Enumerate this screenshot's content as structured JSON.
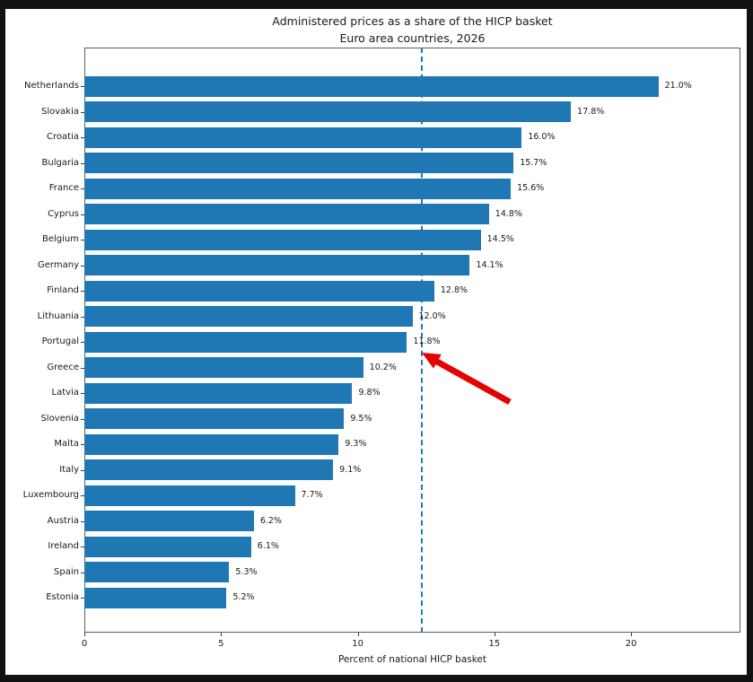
{
  "figure": {
    "background": "#ffffff",
    "outer_border_color": "#111111"
  },
  "chart_data": {
    "type": "bar",
    "orientation": "horizontal",
    "title": "Administered prices as a share of the HICP basket",
    "subtitle": "Euro area countries, 2026",
    "xlabel": "Percent of national HICP basket",
    "ylabel": "",
    "categories": [
      "Netherlands",
      "Slovakia",
      "Croatia",
      "Bulgaria",
      "France",
      "Cyprus",
      "Belgium",
      "Germany",
      "Finland",
      "Lithuania",
      "Portugal",
      "Greece",
      "Latvia",
      "Slovenia",
      "Malta",
      "Italy",
      "Luxembourg",
      "Austria",
      "Ireland",
      "Spain",
      "Estonia"
    ],
    "values": [
      21.0,
      17.8,
      16.0,
      15.7,
      15.6,
      14.8,
      14.5,
      14.1,
      12.8,
      12.0,
      11.8,
      10.2,
      9.8,
      9.5,
      9.3,
      9.1,
      7.7,
      6.2,
      6.1,
      5.3,
      5.2
    ],
    "bar_labels": [
      "21.0%",
      "17.8%",
      "16.0%",
      "15.7%",
      "15.6%",
      "14.8%",
      "14.5%",
      "14.1%",
      "12.8%",
      "12.0%",
      "11.8%",
      "10.2%",
      "9.8%",
      "9.5%",
      "9.3%",
      "9.1%",
      "7.7%",
      "6.2%",
      "6.1%",
      "5.3%",
      "5.2%"
    ],
    "xlim": [
      0,
      24
    ],
    "xticks": [
      0,
      5,
      10,
      15,
      20
    ],
    "grid": false,
    "legend": null,
    "bar_color": "#1f77b4",
    "reference_line": {
      "value": 12.3,
      "style": "dashed",
      "color": "#1f77b4"
    },
    "annotation": {
      "type": "arrow",
      "color": "#e60000",
      "points_to": "reference line at Portugal bar"
    }
  }
}
